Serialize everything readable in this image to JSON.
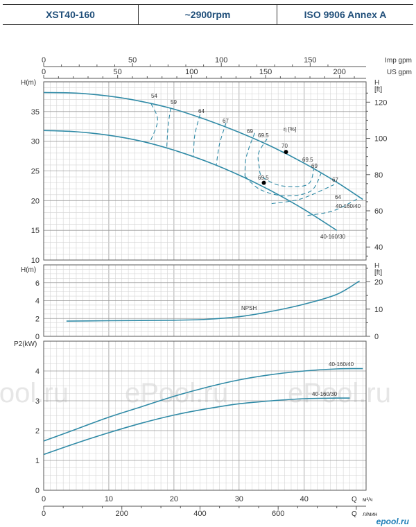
{
  "header": {
    "model": "XST40-160",
    "speed": "~2900rpm",
    "standard": "ISO 9906   Annex A"
  },
  "watermark": {
    "text": "ePool.ru",
    "logo": "epool.ru"
  },
  "colors": {
    "curve": "#2f8aa6",
    "header_text": "#1f4e79"
  },
  "axes": {
    "imp_gpm": {
      "label": "Imp gpm",
      "ticks": [
        0,
        50,
        100,
        150
      ]
    },
    "us_gpm": {
      "label": "US gpm",
      "ticks": [
        0,
        50,
        100,
        150,
        200
      ]
    },
    "q_m3h": {
      "label": "Q",
      "unit": "м³/ч",
      "ticks": [
        0,
        10,
        20,
        30,
        40
      ]
    },
    "q_lmin": {
      "label": "Q",
      "unit": "л/мин",
      "ticks": [
        0,
        200,
        400,
        600
      ]
    }
  },
  "chart_data": [
    {
      "type": "line",
      "panel": "head",
      "ylabel": "H(m)",
      "y2label": "H [ft]",
      "ylim": [
        10,
        40
      ],
      "yticks": [
        10,
        15,
        20,
        25,
        30,
        35
      ],
      "y2ticks": [
        40,
        60,
        80,
        100,
        120
      ],
      "series": [
        {
          "name": "40-160/40",
          "x": [
            0,
            5,
            10,
            15,
            20,
            25,
            30,
            35,
            40,
            45,
            49
          ],
          "y": [
            38.2,
            38.1,
            37.6,
            36.7,
            35.4,
            33.6,
            31.5,
            29.1,
            26.3,
            23.1,
            20.2
          ]
        },
        {
          "name": "40-160/30",
          "x": [
            0,
            5,
            10,
            15,
            20,
            25,
            30,
            35,
            40,
            45
          ],
          "y": [
            31.8,
            31.6,
            31.0,
            30.0,
            28.5,
            26.6,
            24.3,
            21.6,
            18.5,
            15.0
          ]
        }
      ],
      "efficiency": {
        "label": "η [%]",
        "contours": [
          {
            "label": "54",
            "points": [
              [
                16.5,
                36.3
              ],
              [
                17.5,
                33.5
              ],
              [
                16.3,
                29.8
              ]
            ]
          },
          {
            "label": "59",
            "points": [
              [
                19.5,
                35.6
              ],
              [
                19.1,
                32.5
              ],
              [
                18.9,
                29.0
              ]
            ]
          },
          {
            "label": "64",
            "points": [
              [
                24.0,
                34.5
              ],
              [
                23.2,
                31.0
              ],
              [
                23.0,
                27.5
              ]
            ]
          },
          {
            "label": "67",
            "points": [
              [
                28.0,
                33.1
              ],
              [
                27.0,
                29.5
              ],
              [
                26.5,
                25.9
              ]
            ]
          },
          {
            "label": "69",
            "points": [
              [
                32.4,
                31.4
              ],
              [
                31.5,
                28.8
              ],
              [
                31.0,
                26.7
              ],
              [
                30.9,
                24.1
              ]
            ]
          },
          {
            "label": "69.5",
            "points": [
              [
                34.3,
                30.4
              ],
              [
                33.0,
                28.0
              ],
              [
                33.1,
                25.7
              ],
              [
                33.6,
                24.0
              ],
              [
                36.5,
                22.5
              ],
              [
                40.5,
                22.7
              ],
              [
                41.5,
                25.4
              ]
            ]
          },
          {
            "label": "69",
            "points": [
              [
                30.9,
                24.1
              ],
              [
                33.2,
                21.9
              ],
              [
                37.0,
                20.8
              ],
              [
                41.0,
                21.6
              ],
              [
                42.6,
                24.6
              ]
            ]
          },
          {
            "label": "67",
            "points": [
              [
                35.0,
                19.5
              ],
              [
                39.5,
                20.3
              ],
              [
                44.6,
                22.7
              ]
            ]
          },
          {
            "label": "64",
            "points": [
              [
                40.5,
                17.5
              ],
              [
                44.5,
                18.3
              ],
              [
                48.5,
                20.5
              ]
            ]
          }
        ],
        "labels": [
          "54",
          "59",
          "64",
          "67",
          "69",
          "69.5",
          "70",
          "69.5",
          "69",
          "67",
          "64",
          "69.5"
        ],
        "best_points": [
          {
            "label": "70",
            "x": 37.2,
            "y": 28.2
          },
          {
            "label": "69.5",
            "x": 33.8,
            "y": 23.0
          }
        ]
      }
    },
    {
      "type": "line",
      "panel": "npsh",
      "ylabel": "H(m)",
      "y2label": "H [ft]",
      "ylim": [
        0,
        8
      ],
      "yticks": [
        0,
        2,
        4,
        6
      ],
      "y2ticks": [
        0,
        10,
        20
      ],
      "series": [
        {
          "name": "NPSH",
          "x": [
            3.5,
            10,
            20,
            25,
            30,
            35,
            40,
            45,
            48.5
          ],
          "y": [
            1.7,
            1.75,
            1.8,
            1.9,
            2.2,
            2.8,
            3.6,
            4.7,
            6.2
          ]
        }
      ]
    },
    {
      "type": "line",
      "panel": "power",
      "ylabel": "P2(kW)",
      "ylim": [
        0,
        5
      ],
      "yticks": [
        0,
        1,
        2,
        3,
        4
      ],
      "xlim": [
        0,
        49
      ],
      "series": [
        {
          "name": "40-160/40",
          "x": [
            0,
            5,
            10,
            15,
            20,
            25,
            30,
            35,
            40,
            45,
            49
          ],
          "y": [
            1.65,
            2.05,
            2.45,
            2.8,
            3.15,
            3.45,
            3.7,
            3.88,
            4.0,
            4.07,
            4.08
          ]
        },
        {
          "name": "40-160/30",
          "x": [
            0,
            5,
            10,
            15,
            20,
            25,
            30,
            35,
            40,
            45,
            47
          ],
          "y": [
            1.2,
            1.58,
            1.93,
            2.25,
            2.52,
            2.73,
            2.9,
            3.0,
            3.07,
            3.09,
            3.09
          ]
        }
      ]
    }
  ]
}
